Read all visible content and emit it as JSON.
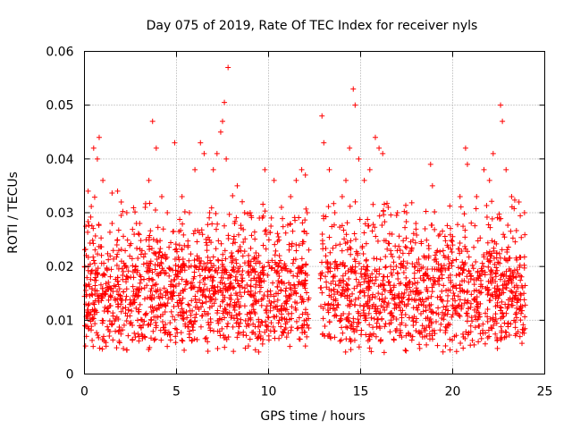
{
  "chart_data": {
    "type": "scatter",
    "title": "Day 075 of 2019, Rate Of TEC Index for receiver nyls",
    "xlabel": "GPS time / hours",
    "ylabel": "ROTI / TECUs",
    "xlim": [
      0,
      25
    ],
    "ylim": [
      0,
      0.06
    ],
    "x_ticks": [
      0,
      5,
      10,
      15,
      20,
      25
    ],
    "y_ticks": [
      0,
      0.01,
      0.02,
      0.03,
      0.04,
      0.05,
      0.06
    ],
    "x_tick_labels": [
      "0",
      "5",
      "10",
      "15",
      "20",
      "25"
    ],
    "y_tick_labels": [
      "0",
      "0.01",
      "0.02",
      "0.03",
      "0.04",
      "0.05",
      "0.06"
    ],
    "grid": true,
    "marker": "+",
    "color": "#ff0000",
    "data_gap_hours": [
      12.2,
      12.8
    ],
    "series": [
      {
        "name": "ROTI",
        "points": [
          [
            0.2,
            0.034
          ],
          [
            0.5,
            0.042
          ],
          [
            0.7,
            0.04
          ],
          [
            0.8,
            0.044
          ],
          [
            1.0,
            0.036
          ],
          [
            1.5,
            0.028
          ],
          [
            1.8,
            0.034
          ],
          [
            2.0,
            0.032
          ],
          [
            2.3,
            0.03
          ],
          [
            2.7,
            0.026
          ],
          [
            3.0,
            0.028
          ],
          [
            3.3,
            0.031
          ],
          [
            3.5,
            0.036
          ],
          [
            3.7,
            0.047
          ],
          [
            3.9,
            0.042
          ],
          [
            4.2,
            0.033
          ],
          [
            4.5,
            0.03
          ],
          [
            4.9,
            0.043
          ],
          [
            5.3,
            0.033
          ],
          [
            5.7,
            0.03
          ],
          [
            6.0,
            0.038
          ],
          [
            6.3,
            0.043
          ],
          [
            6.5,
            0.041
          ],
          [
            6.8,
            0.03
          ],
          [
            7.0,
            0.038
          ],
          [
            7.2,
            0.041
          ],
          [
            7.4,
            0.045
          ],
          [
            7.5,
            0.047
          ],
          [
            7.6,
            0.0505
          ],
          [
            7.8,
            0.057
          ],
          [
            7.7,
            0.04
          ],
          [
            8.3,
            0.035
          ],
          [
            8.7,
            0.03
          ],
          [
            9.0,
            0.03
          ],
          [
            9.5,
            0.029
          ],
          [
            9.8,
            0.038
          ],
          [
            10.3,
            0.036
          ],
          [
            10.7,
            0.031
          ],
          [
            11.2,
            0.033
          ],
          [
            11.5,
            0.036
          ],
          [
            11.8,
            0.038
          ],
          [
            12.0,
            0.037
          ],
          [
            12.1,
            0.03
          ],
          [
            12.9,
            0.048
          ],
          [
            13.0,
            0.043
          ],
          [
            13.3,
            0.038
          ],
          [
            13.6,
            0.03
          ],
          [
            14.0,
            0.033
          ],
          [
            14.2,
            0.036
          ],
          [
            14.4,
            0.042
          ],
          [
            14.6,
            0.053
          ],
          [
            14.7,
            0.05
          ],
          [
            14.9,
            0.04
          ],
          [
            15.2,
            0.036
          ],
          [
            15.5,
            0.038
          ],
          [
            15.8,
            0.044
          ],
          [
            16.0,
            0.042
          ],
          [
            16.2,
            0.041
          ],
          [
            16.5,
            0.031
          ],
          [
            17.0,
            0.03
          ],
          [
            17.5,
            0.03
          ],
          [
            18.0,
            0.028
          ],
          [
            18.5,
            0.027
          ],
          [
            18.8,
            0.039
          ],
          [
            18.9,
            0.035
          ],
          [
            19.3,
            0.026
          ],
          [
            20.0,
            0.024
          ],
          [
            20.4,
            0.033
          ],
          [
            20.7,
            0.042
          ],
          [
            20.8,
            0.039
          ],
          [
            21.3,
            0.033
          ],
          [
            21.7,
            0.038
          ],
          [
            22.0,
            0.036
          ],
          [
            22.2,
            0.041
          ],
          [
            22.6,
            0.05
          ],
          [
            22.7,
            0.047
          ],
          [
            22.9,
            0.038
          ],
          [
            23.2,
            0.033
          ],
          [
            23.6,
            0.032
          ],
          [
            23.9,
            0.03
          ]
        ]
      }
    ]
  }
}
